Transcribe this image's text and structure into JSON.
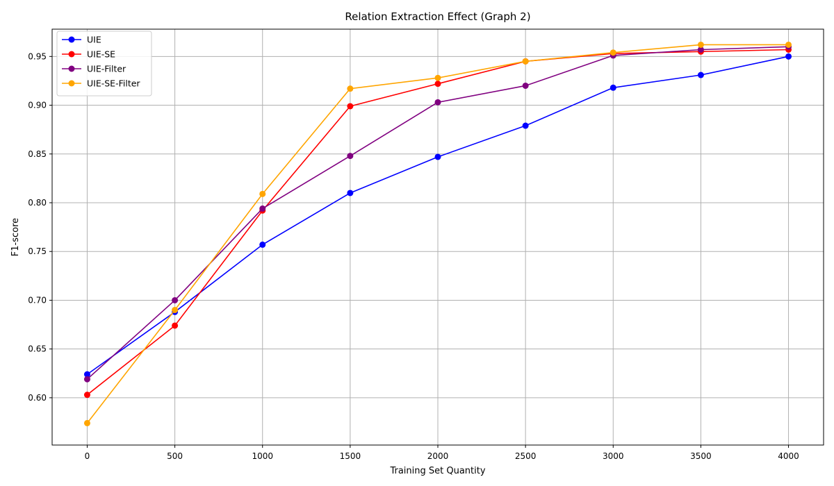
{
  "chart_data": {
    "type": "line",
    "title": "Relation Extraction Effect (Graph 2)",
    "xlabel": "Training Set Quantity",
    "ylabel": "F1-score",
    "x": [
      0,
      500,
      1000,
      1500,
      2000,
      2500,
      3000,
      3500,
      4000
    ],
    "xlim": [
      -200,
      4200
    ],
    "ylim": [
      0.5515,
      0.978
    ],
    "xticks": [
      0,
      500,
      1000,
      1500,
      2000,
      2500,
      3000,
      3500,
      4000
    ],
    "xtick_labels": [
      "0",
      "500",
      "1000",
      "1500",
      "2000",
      "2500",
      "3000",
      "3500",
      "4000"
    ],
    "yticks": [
      0.6,
      0.65,
      0.7,
      0.75,
      0.8,
      0.85,
      0.9,
      0.95
    ],
    "ytick_labels": [
      "0.60",
      "0.65",
      "0.70",
      "0.75",
      "0.80",
      "0.85",
      "0.90",
      "0.95"
    ],
    "grid": true,
    "legend_position": "top-left",
    "marker": "circle",
    "series": [
      {
        "name": "UIE",
        "color": "#0000ff",
        "values": [
          0.624,
          0.688,
          0.757,
          0.81,
          0.847,
          0.879,
          0.918,
          0.931,
          0.95
        ]
      },
      {
        "name": "UIE-SE",
        "color": "#ff0000",
        "values": [
          0.603,
          0.674,
          0.792,
          0.899,
          0.922,
          0.945,
          0.953,
          0.955,
          0.957
        ]
      },
      {
        "name": "UIE-Filter",
        "color": "#800080",
        "values": [
          0.619,
          0.7,
          0.794,
          0.848,
          0.903,
          0.92,
          0.951,
          0.957,
          0.96
        ]
      },
      {
        "name": "UIE-SE-Filter",
        "color": "#ffa500",
        "values": [
          0.574,
          0.69,
          0.809,
          0.917,
          0.928,
          0.945,
          0.954,
          0.962,
          0.962
        ]
      }
    ]
  }
}
